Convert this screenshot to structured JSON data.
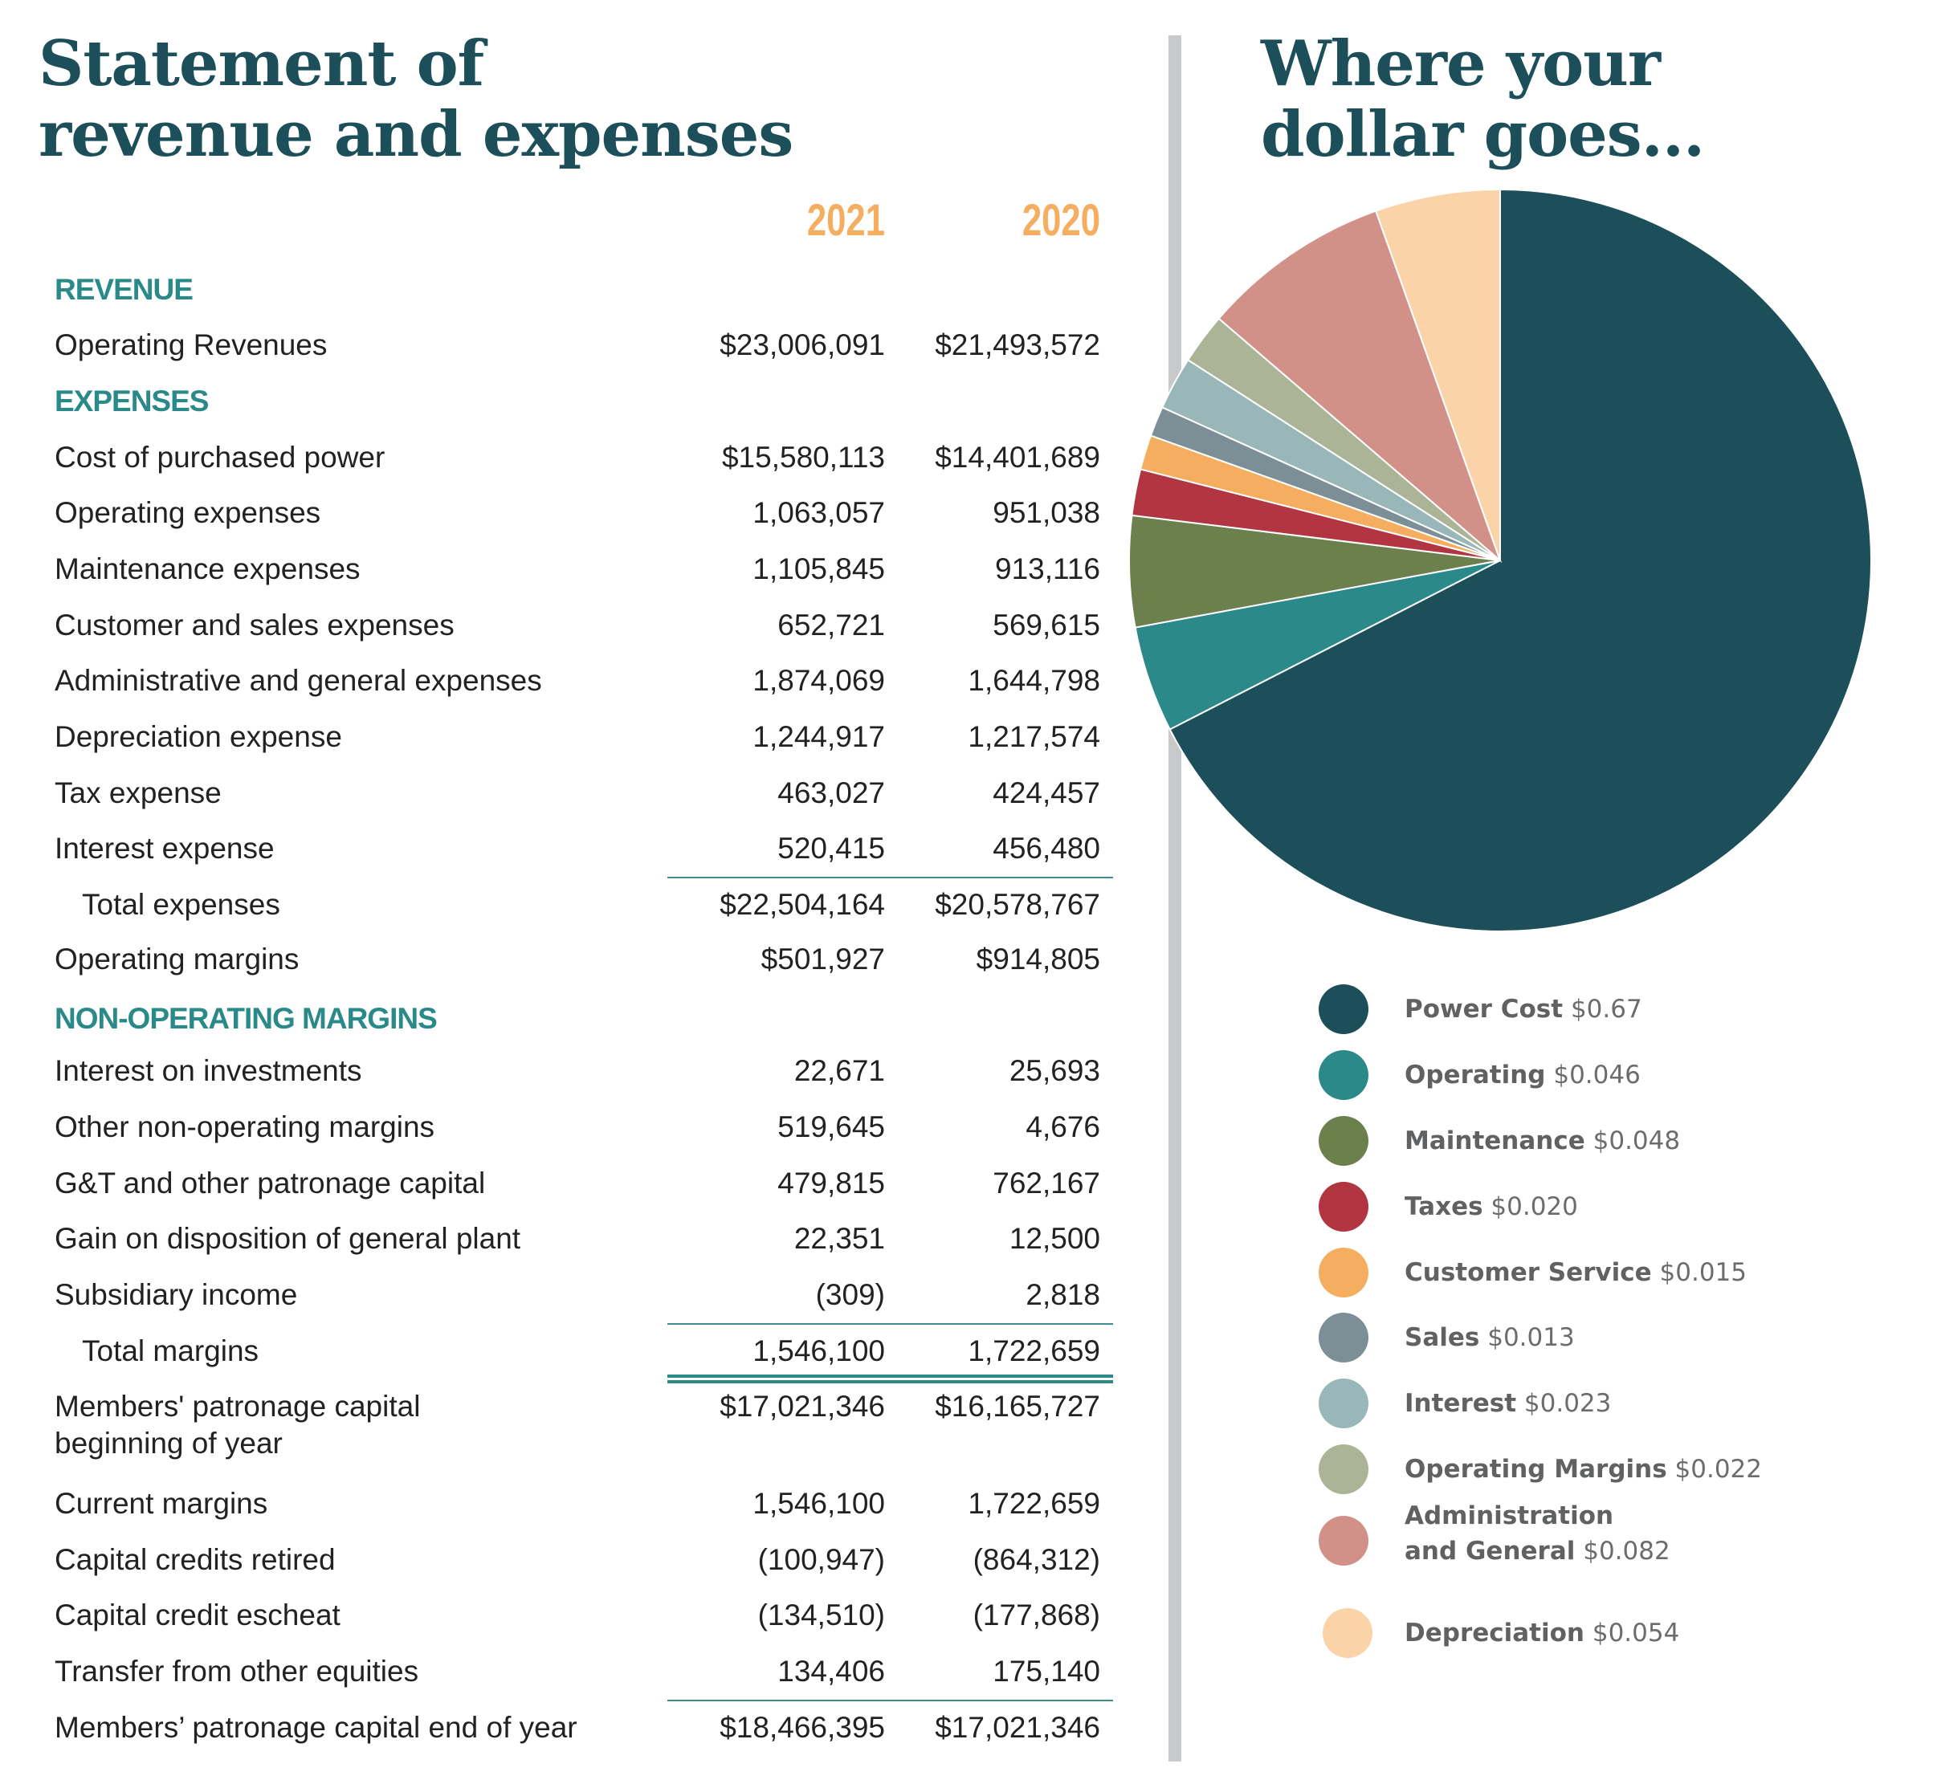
{
  "left": {
    "title_line1": "Statement of",
    "title_line2": "revenue and expenses",
    "years": [
      "2021",
      "2020"
    ],
    "sections": {
      "revenue": "REVENUE",
      "expenses": "EXPENSES",
      "non_operating": "NON-OPERATING MARGINS"
    },
    "rows": [
      {
        "label": "Operating Revenues",
        "y2021": "$23,006,091",
        "y2020": "$21,493,572"
      },
      {
        "label": "Cost of purchased power",
        "y2021": "$15,580,113",
        "y2020": "$14,401,689"
      },
      {
        "label": "Operating expenses",
        "y2021": "1,063,057",
        "y2020": "951,038"
      },
      {
        "label": "Maintenance expenses",
        "y2021": "1,105,845",
        "y2020": "913,116"
      },
      {
        "label": "Customer and sales expenses",
        "y2021": "652,721",
        "y2020": "569,615"
      },
      {
        "label": "Administrative and general expenses",
        "y2021": "1,874,069",
        "y2020": "1,644,798"
      },
      {
        "label": "Depreciation expense",
        "y2021": "1,244,917",
        "y2020": "1,217,574"
      },
      {
        "label": "Tax expense",
        "y2021": "463,027",
        "y2020": "424,457"
      },
      {
        "label": "Interest expense",
        "y2021": "520,415",
        "y2020": "456,480"
      },
      {
        "label": "Total expenses",
        "y2021": "$22,504,164",
        "y2020": "$20,578,767"
      },
      {
        "label": "Operating margins",
        "y2021": "$501,927",
        "y2020": "$914,805"
      },
      {
        "label": "Interest on investments",
        "y2021": "22,671",
        "y2020": "25,693"
      },
      {
        "label": "Other non-operating margins",
        "y2021": "519,645",
        "y2020": "4,676"
      },
      {
        "label": "G&T and other patronage capital",
        "y2021": "479,815",
        "y2020": "762,167"
      },
      {
        "label": "Gain on disposition of general plant",
        "y2021": "22,351",
        "y2020": "12,500"
      },
      {
        "label": "Subsidiary income",
        "y2021": "(309)",
        "y2020": "2,818"
      },
      {
        "label": "Total margins",
        "y2021": "1,546,100",
        "y2020": "1,722,659"
      },
      {
        "label": "Members' patronage capital",
        "label2": "beginning of year",
        "y2021": "$17,021,346",
        "y2020": "$16,165,727"
      },
      {
        "label": "Current margins",
        "y2021": "1,546,100",
        "y2020": "1,722,659"
      },
      {
        "label": "Capital credits retired",
        "y2021": "(100,947)",
        "y2020": "(864,312)"
      },
      {
        "label": "Capital credit escheat",
        "y2021": "(134,510)",
        "y2020": "(177,868)"
      },
      {
        "label": "Transfer from other equities",
        "y2021": "134,406",
        "y2020": "175,140"
      },
      {
        "label": "Members’ patronage capital end of year",
        "y2021": "$18,466,395",
        "y2020": "$17,021,346"
      }
    ]
  },
  "right": {
    "title_line1": "Where your",
    "title_line2": "dollar goes..."
  },
  "chart_data": {
    "type": "pie",
    "title": "Where your dollar goes...",
    "start": "12 o'clock, clockwise",
    "legend_placement": "bottom",
    "slices": [
      {
        "name": "Power Cost",
        "value": 0.67,
        "label": "$0.67",
        "color": "#1c4f5a"
      },
      {
        "name": "Operating",
        "value": 0.046,
        "label": "$0.046",
        "color": "#2b898a"
      },
      {
        "name": "Maintenance",
        "value": 0.048,
        "label": "$0.048",
        "color": "#6c804d"
      },
      {
        "name": "Taxes",
        "value": 0.02,
        "label": "$0.020",
        "color": "#b13641"
      },
      {
        "name": "Customer Service",
        "value": 0.015,
        "label": "$0.015",
        "color": "#f5ae5f"
      },
      {
        "name": "Sales",
        "value": 0.013,
        "label": "$0.013",
        "color": "#7d8f96"
      },
      {
        "name": "Interest",
        "value": 0.023,
        "label": "$0.023",
        "color": "#99b7b9"
      },
      {
        "name": "Operating Margins",
        "value": 0.022,
        "label": "$0.022",
        "color": "#abb496"
      },
      {
        "name": "Administration and General",
        "name_line1": "Administration",
        "name_line2": "and General",
        "value": 0.082,
        "label": "$0.082",
        "color": "#d29188"
      },
      {
        "name": "Depreciation",
        "value": 0.054,
        "label": "$0.054",
        "color": "#fad4a8"
      }
    ]
  }
}
